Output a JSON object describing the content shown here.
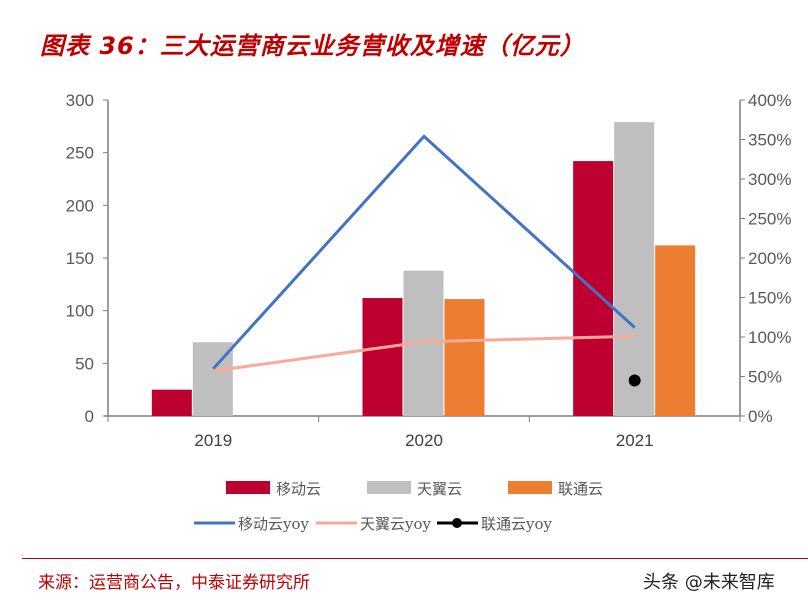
{
  "title": "图表 36：三大运营商云业务营收及增速（亿元）",
  "source": "来源：运营商公告，中泰证券研究所",
  "watermark": "头条 @未来智库",
  "chart_data": {
    "type": "bar+line",
    "categories": [
      "2019",
      "2020",
      "2021"
    ],
    "left_axis": {
      "ylim": [
        0,
        300
      ],
      "ticks": [
        "0",
        "50",
        "100",
        "150",
        "200",
        "250",
        "300"
      ]
    },
    "right_axis": {
      "ylim": [
        0,
        400
      ],
      "ticks": [
        "0%",
        "50%",
        "100%",
        "150%",
        "200%",
        "250%",
        "300%",
        "350%",
        "400%"
      ]
    },
    "bar_series": [
      {
        "name": "移动云",
        "color": "#be0030",
        "values": [
          25,
          112,
          242
        ]
      },
      {
        "name": "天翼云",
        "color": "#bfbfbf",
        "values": [
          70,
          138,
          279
        ]
      },
      {
        "name": "联通云",
        "color": "#ed7d31",
        "values": [
          null,
          111,
          162
        ]
      }
    ],
    "line_series": [
      {
        "name": "移动云yoy",
        "color": "#4472c4",
        "values": [
          60,
          354,
          112
        ]
      },
      {
        "name": "天翼云yoy",
        "color": "#f8a99a",
        "values": [
          57,
          94,
          101
        ]
      },
      {
        "name": "联通云yoy",
        "color": "#000000",
        "values": [
          null,
          null,
          45
        ]
      }
    ],
    "legend": "bottom",
    "grid": false
  }
}
